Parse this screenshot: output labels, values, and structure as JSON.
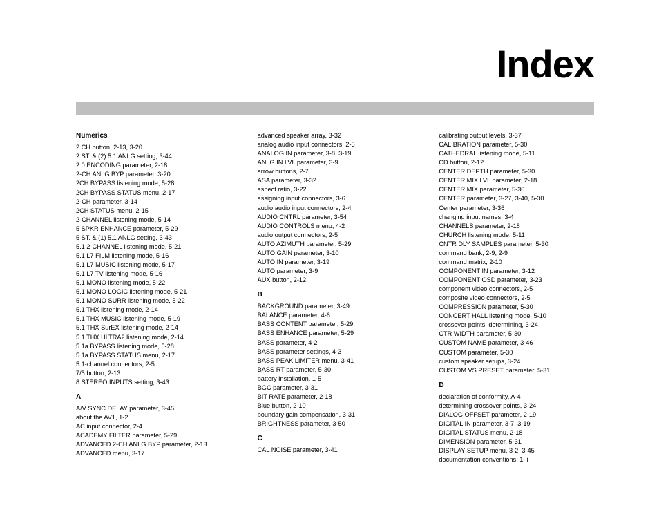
{
  "title": "Index",
  "columns": [
    {
      "sections": [
        {
          "heading": "Numerics",
          "entries": [
            "2 CH button, 2-13, 3-20",
            "2 ST. & (2) 5.1 ANLG setting, 3-44",
            "2.0 ENCODING parameter, 2-18",
            "2-CH ANLG BYP parameter, 3-20",
            "2CH BYPASS listening mode, 5-28",
            "2CH BYPASS STATUS menu, 2-17",
            "2-CH parameter, 3-14",
            "2CH STATUS menu, 2-15",
            "2-CHANNEL listening mode, 5-14",
            "5 SPKR ENHANCE parameter, 5-29",
            "5 ST. & (1) 5.1 ANLG setting, 3-43",
            "5.1 2-CHANNEL listening mode, 5-21",
            "5.1 L7 FILM listening mode, 5-16",
            "5.1 L7 MUSIC listening mode, 5-17",
            "5.1 L7 TV listening mode, 5-16",
            "5.1 MONO listening mode, 5-22",
            "5.1 MONO LOGIC listening mode, 5-21",
            "5.1 MONO SURR listening mode, 5-22",
            "5.1 THX listening mode, 2-14",
            "5.1 THX MUSIC listening mode, 5-19",
            "5.1 THX SurEX listening mode, 2-14",
            "5.1 THX ULTRA2 listening mode, 2-14",
            "5.1a BYPASS listening mode, 5-28",
            "5.1a BYPASS STATUS menu, 2-17",
            "5.1-channel connectors, 2-5",
            "7/5 button, 2-13",
            "8 STEREO INPUTS setting, 3-43"
          ]
        },
        {
          "heading": "A",
          "entries": [
            "A/V SYNC DELAY parameter, 3-45",
            "about the AV1, 1-2",
            "AC input connector, 2-4",
            "ACADEMY FILTER parameter, 5-29",
            "ADVANCED 2-CH ANLG BYP parameter, 2-13",
            "ADVANCED menu, 3-17"
          ]
        }
      ]
    },
    {
      "sections": [
        {
          "heading": "",
          "entries": [
            "advanced speaker array, 3-32",
            "analog audio input connectors, 2-5",
            "ANALOG IN parameter, 3-8, 3-19",
            "ANLG IN LVL parameter, 3-9",
            "arrow buttons, 2-7",
            "ASA parameter, 3-32",
            "aspect ratio, 3-22",
            "assigning input connectors, 3-6",
            "audio audio input connectors, 2-4",
            "AUDIO CNTRL parameter, 3-54",
            "AUDIO CONTROLS menu, 4-2",
            "audio output connectors, 2-5",
            "AUTO AZIMUTH parameter, 5-29",
            "AUTO GAIN parameter, 3-10",
            "AUTO IN parameter, 3-19",
            "AUTO parameter, 3-9",
            "AUX button, 2-12"
          ]
        },
        {
          "heading": "B",
          "entries": [
            "BACKGROUND parameter, 3-49",
            "BALANCE parameter, 4-6",
            "BASS CONTENT parameter, 5-29",
            "BASS ENHANCE parameter, 5-29",
            "BASS parameter, 4-2",
            "BASS parameter settings, 4-3",
            "BASS PEAK LIMITER menu, 3-41",
            "BASS RT parameter, 5-30",
            "battery installation, 1-5",
            "BGC parameter, 3-31",
            "BIT RATE parameter, 2-18",
            "Blue button, 2-10",
            "boundary gain compensation, 3-31",
            "BRIGHTNESS parameter, 3-50"
          ]
        },
        {
          "heading": "C",
          "entries": [
            "CAL NOISE parameter, 3-41"
          ]
        }
      ]
    },
    {
      "sections": [
        {
          "heading": "",
          "entries": [
            "calibrating output levels, 3-37",
            "CALIBRATION parameter, 5-30",
            "CATHEDRAL listening mode, 5-11",
            "CD button, 2-12",
            "CENTER DEPTH parameter, 5-30",
            "CENTER MIX LVL parameter, 2-18",
            "CENTER MIX parameter, 5-30",
            "CENTER parameter, 3-27, 3-40, 5-30",
            "Center parameter, 3-36",
            "changing input names, 3-4",
            "CHANNELS parameter, 2-18",
            "CHURCH listening mode, 5-11",
            "CNTR DLY SAMPLES parameter, 5-30",
            "command bank, 2-9, 2-9",
            "command matrix, 2-10",
            "COMPONENT IN parameter, 3-12",
            "COMPONENT OSD parameter, 3-23",
            "component video connectors, 2-5",
            "composite video connectors, 2-5",
            "COMPRESSION parameter, 5-30",
            "CONCERT HALL listening mode, 5-10",
            "crossover points, determining, 3-24",
            "CTR WIDTH parameter, 5-30",
            "CUSTOM NAME parameter, 3-46",
            "CUSTOM parameter, 5-30",
            "custom speaker setups, 3-24",
            "CUSTOM VS PRESET parameter, 5-31"
          ]
        },
        {
          "heading": "D",
          "entries": [
            "declaration of conformity, A-4",
            "determining crossover points, 3-24",
            "DIALOG OFFSET parameter, 2-19",
            "DIGITAL IN parameter, 3-7, 3-19",
            "DIGITAL STATUS menu, 2-18",
            "DIMENSION parameter, 5-31",
            "DISPLAY SETUP menu, 3-2, 3-45",
            "documentation conventions, 1-ii"
          ]
        }
      ]
    }
  ]
}
